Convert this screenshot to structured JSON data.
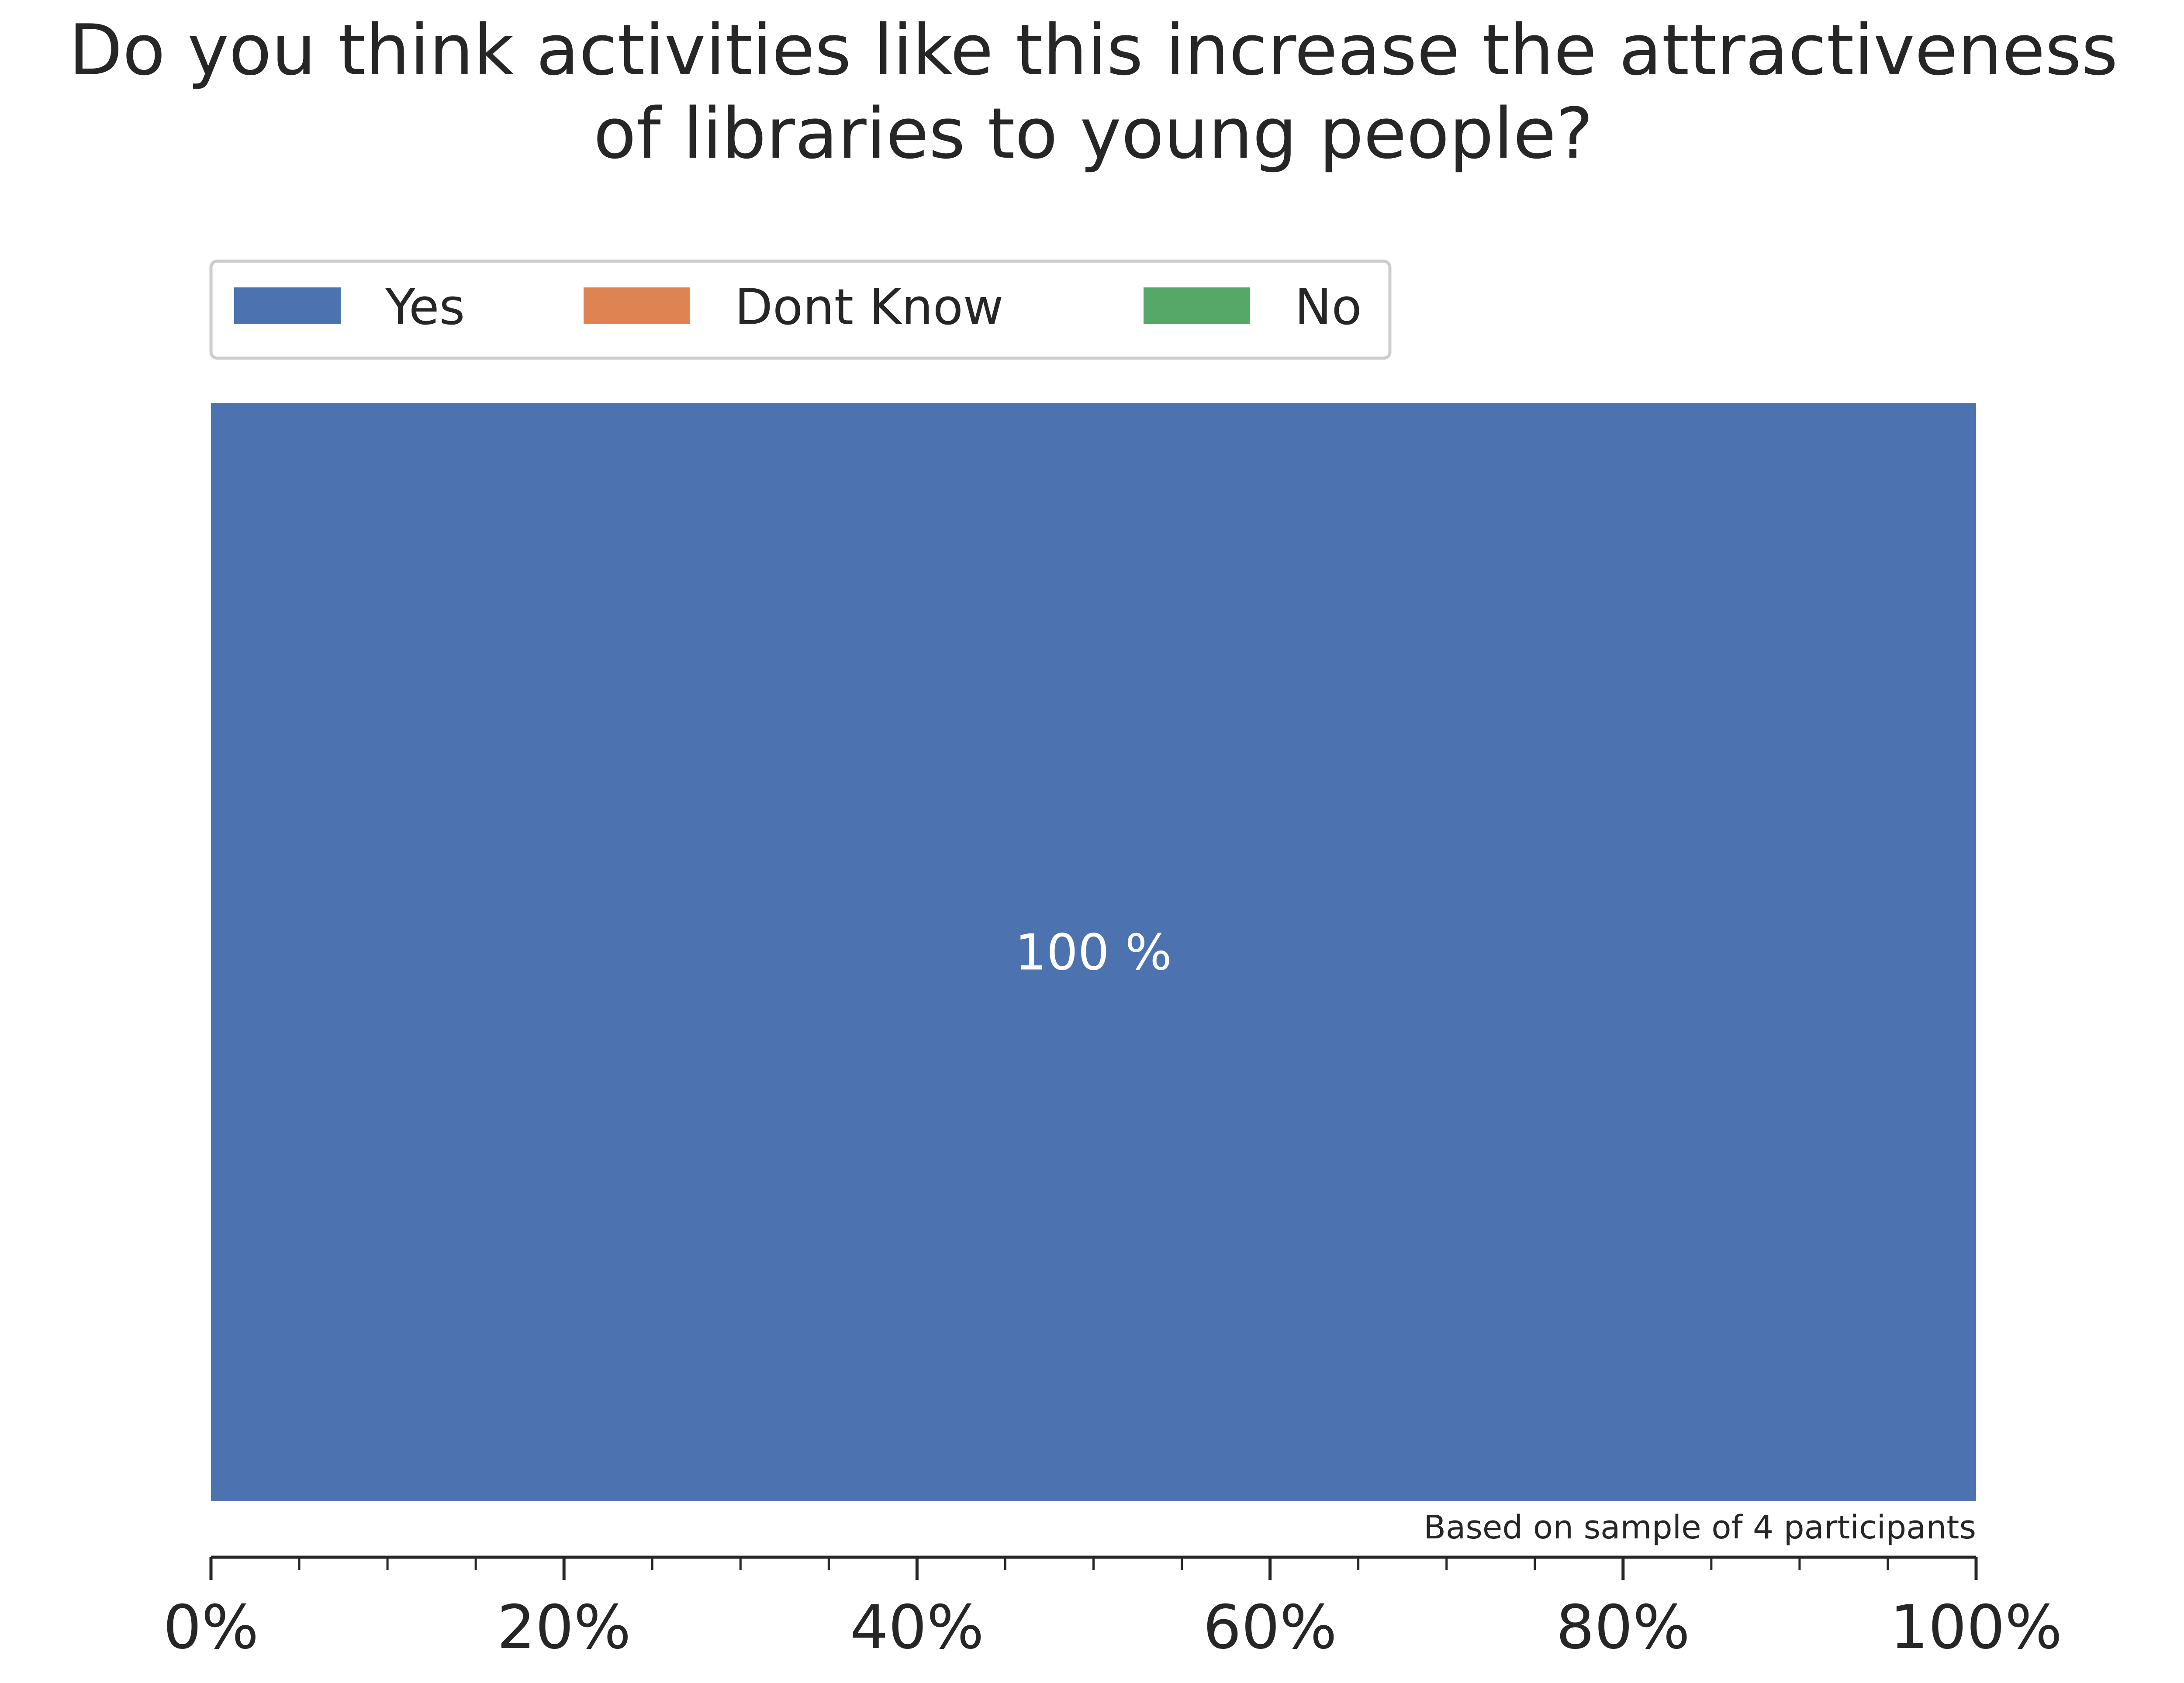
{
  "chart_data": {
    "type": "bar",
    "orientation": "horizontal",
    "stacked": true,
    "title": "Do you think activities like this increase the attractiveness of libraries to young people?",
    "title_lines": [
      "Do you think activities like this increase the attractiveness",
      "of libraries to young people?"
    ],
    "categories": [
      ""
    ],
    "series": [
      {
        "name": "Yes",
        "values": [
          100
        ],
        "color": "#4c72b0",
        "label": "100 %"
      },
      {
        "name": "Dont Know",
        "values": [
          0
        ],
        "color": "#dd8452",
        "label": ""
      },
      {
        "name": "No",
        "values": [
          0
        ],
        "color": "#55a868",
        "label": ""
      }
    ],
    "xlabel": "",
    "ylabel": "",
    "xlim": [
      0,
      100
    ],
    "x_ticks": [
      0,
      20,
      40,
      60,
      80,
      100
    ],
    "x_tick_labels": [
      "0%",
      "20%",
      "40%",
      "60%",
      "80%",
      "100%"
    ],
    "x_minor_step": 5,
    "grid": false,
    "legend_position": "top-left",
    "note": "Based on sample of 4 participants"
  }
}
